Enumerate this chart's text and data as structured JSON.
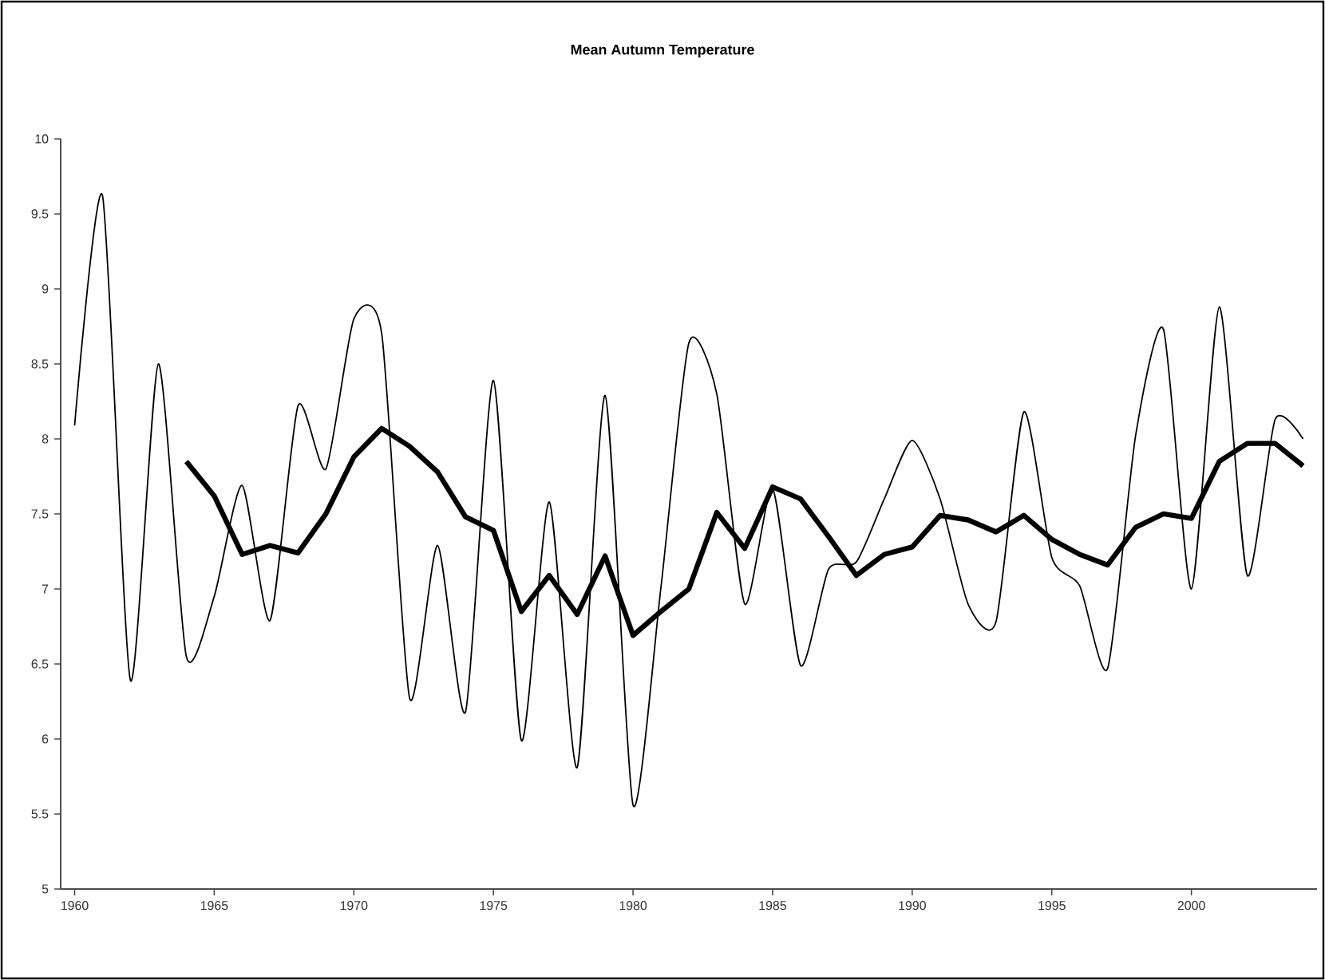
{
  "chart_data": {
    "type": "line",
    "title": "Mean Autumn Temperature",
    "xlim": [
      1959.5,
      2004.5
    ],
    "xticks": [
      1960,
      1965,
      1970,
      1975,
      1980,
      1985,
      1990,
      1995,
      2000
    ],
    "ylim": [
      5,
      10
    ],
    "yticks": [
      5,
      5.5,
      6,
      6.5,
      7,
      7.5,
      8,
      8.5,
      9,
      9.5,
      10
    ],
    "series": [
      {
        "color": "#000000",
        "x": [
          1960,
          1961,
          1962,
          1963,
          1964,
          1965,
          1966,
          1967,
          1968,
          1969,
          1970,
          1971,
          1972,
          1973,
          1974,
          1975,
          1976,
          1977,
          1978,
          1979,
          1980,
          1981,
          1982,
          1983,
          1984,
          1985,
          1986,
          1987,
          1988,
          1989,
          1990,
          1991,
          1992,
          1993,
          1994,
          1995,
          1996,
          1997,
          1998,
          1999,
          2000,
          2001,
          2002,
          2003,
          2004
        ],
        "values": [
          8.09,
          9.62,
          6.39,
          8.5,
          6.55,
          6.95,
          7.69,
          6.79,
          8.22,
          7.8,
          8.8,
          8.7,
          6.27,
          7.29,
          6.18,
          8.39,
          5.99,
          7.58,
          5.81,
          8.29,
          5.56,
          7.01,
          8.64,
          8.3,
          6.9,
          7.67,
          6.49,
          7.13,
          7.18,
          7.6,
          7.99,
          7.6,
          6.9,
          6.78,
          8.18,
          7.21,
          7.02,
          6.47,
          8.02,
          8.73,
          7.0,
          8.88,
          7.09,
          8.13,
          8.0
        ]
      },
      {
        "color": "#000000",
        "x": [
          1964,
          1965,
          1966,
          1967,
          1968,
          1969,
          1970,
          1971,
          1972,
          1973,
          1974,
          1975,
          1976,
          1977,
          1978,
          1979,
          1980,
          1981,
          1982,
          1983,
          1984,
          1985,
          1986,
          1987,
          1988,
          1989,
          1990,
          1991,
          1992,
          1993,
          1994,
          1995,
          1996,
          1997,
          1998,
          1999,
          2000,
          2001,
          2002,
          2003,
          2004
        ],
        "values": [
          7.85,
          7.62,
          7.23,
          7.29,
          7.24,
          7.5,
          7.88,
          8.07,
          7.95,
          7.78,
          7.48,
          7.39,
          6.85,
          7.09,
          6.83,
          7.22,
          6.69,
          6.85,
          7.0,
          7.51,
          7.27,
          7.68,
          7.6,
          7.35,
          7.09,
          7.23,
          7.28,
          7.49,
          7.46,
          7.38,
          7.49,
          7.33,
          7.23,
          7.16,
          7.41,
          7.5,
          7.47,
          7.85,
          7.97,
          7.97,
          7.82
        ]
      }
    ]
  }
}
